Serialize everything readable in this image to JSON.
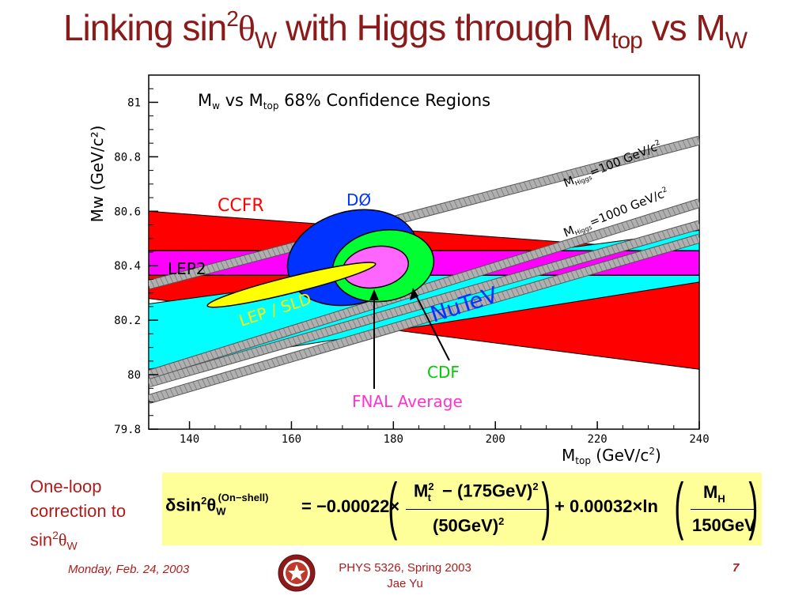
{
  "slide": {
    "title_main": "Linking sin",
    "title_sup": "2",
    "title_theta": "θ",
    "title_sub_w": "W",
    "title_mid": " with Higgs through M",
    "title_sub_top": "top",
    "title_vs": " vs M",
    "title_sub_w2": "W"
  },
  "note": {
    "line1": "One-loop",
    "line2": "correction to",
    "line3_pre": "sin",
    "line3_sup": "2",
    "line3_theta": "θ",
    "line3_sub": "W"
  },
  "formula": {
    "lhs": "δsin",
    "lhs_sup": "2",
    "lhs_theta": "θ",
    "lhs_sub": "W",
    "lhs_sup2": "(On−shell)",
    "eq_coef": "= −0.00022×",
    "num_m": "M",
    "num_sup": "2",
    "num_sub": "t",
    "num_rest": " − (175GeV)",
    "num_rest_sup": "2",
    "den": "(50GeV)",
    "den_sup": "2",
    "plus_coef": "+ 0.00032×ln",
    "ln_num": "M",
    "ln_num_sub": "H",
    "ln_den": "150GeV"
  },
  "footer": {
    "date": "Monday, Feb. 24, 2003",
    "course": "PHYS 5326, Spring 2003",
    "author": "Jae Yu",
    "page": "7"
  },
  "chart_data": {
    "type": "area",
    "title": "Mw vs Mtop 68% Confidence Regions",
    "title_parts": {
      "a": "M",
      "a_sub": "w",
      "b": " vs M",
      "b_sub": "top",
      "c": " 68% Confidence Regions"
    },
    "xlabel_parts": {
      "m": "M",
      "sub": "top",
      "rest": " (GeV/c",
      "sup": "2",
      "close": ")"
    },
    "ylabel": "Mw (GeV/c²)",
    "xlim": [
      132,
      240
    ],
    "ylim": [
      79.8,
      81.1
    ],
    "x_ticks": [
      140,
      160,
      180,
      200,
      220,
      240
    ],
    "y_ticks": [
      79.8,
      80,
      80.2,
      80.4,
      80.6,
      80.8,
      81
    ],
    "grid": false,
    "colors": {
      "ccfr": "#ff0000",
      "nutev": "#00ffff",
      "lep2": "#ff00ff",
      "d0": "#0033ff",
      "cdf": "#00ff33",
      "fnal": "#ff66ff",
      "lepsld": "#ffff00",
      "higgs": "#a0a0a0"
    },
    "bands": [
      {
        "name": "CCFR",
        "left": [
          80.6,
          80.28
        ],
        "right": [
          80.45,
          80.02
        ]
      },
      {
        "name": "NuTeV",
        "left": [
          80.26,
          80.02
        ],
        "right": [
          80.53,
          80.34
        ]
      },
      {
        "name": "LEP2",
        "left": [
          80.455,
          80.365
        ],
        "right": [
          80.455,
          80.365
        ]
      }
    ],
    "higgs_lines": [
      {
        "label_m": "M",
        "label_sub": "Higgs",
        "label_rest": "=100 GeV/c",
        "label_sup": "2",
        "start": [
          132,
          80.33
        ],
        "end": [
          240,
          80.86
        ]
      },
      {
        "label_m": "M",
        "label_sub": "Higgs",
        "label_rest": "=1000 GeV/c",
        "label_sup": "2",
        "start": [
          132,
          79.97
        ],
        "end": [
          240,
          80.55
        ]
      },
      {
        "label_m": "",
        "label_sub": "",
        "label_rest": "",
        "label_sup": "",
        "start": [
          132,
          80.0
        ],
        "end": [
          240,
          80.63
        ]
      },
      {
        "label_m": "",
        "label_sub": "",
        "label_rest": "",
        "label_sup": "",
        "start": [
          132,
          79.91
        ],
        "end": [
          240,
          80.5
        ]
      }
    ],
    "ellipses": [
      {
        "name": "DØ",
        "cx": 172,
        "cy": 80.43,
        "rx": 13,
        "ry": 0.17
      },
      {
        "name": "CDF",
        "cx": 178,
        "cy": 80.4,
        "rx": 10,
        "ry": 0.13
      },
      {
        "name": "FNAL Average",
        "cx": 176.5,
        "cy": 80.395,
        "rx": 6.5,
        "ry": 0.075
      },
      {
        "name": "LEP/SLD",
        "cx": 160,
        "cy": 80.33,
        "rx": 17,
        "ry": 0.03
      }
    ],
    "labels": {
      "ccfr": "CCFR",
      "d0": "DØ",
      "lep2": "LEP2",
      "lepsld": "LEP / SLD",
      "nutev": "NuTeV",
      "cdf": "CDF",
      "fnal": "FNAL Average"
    }
  }
}
